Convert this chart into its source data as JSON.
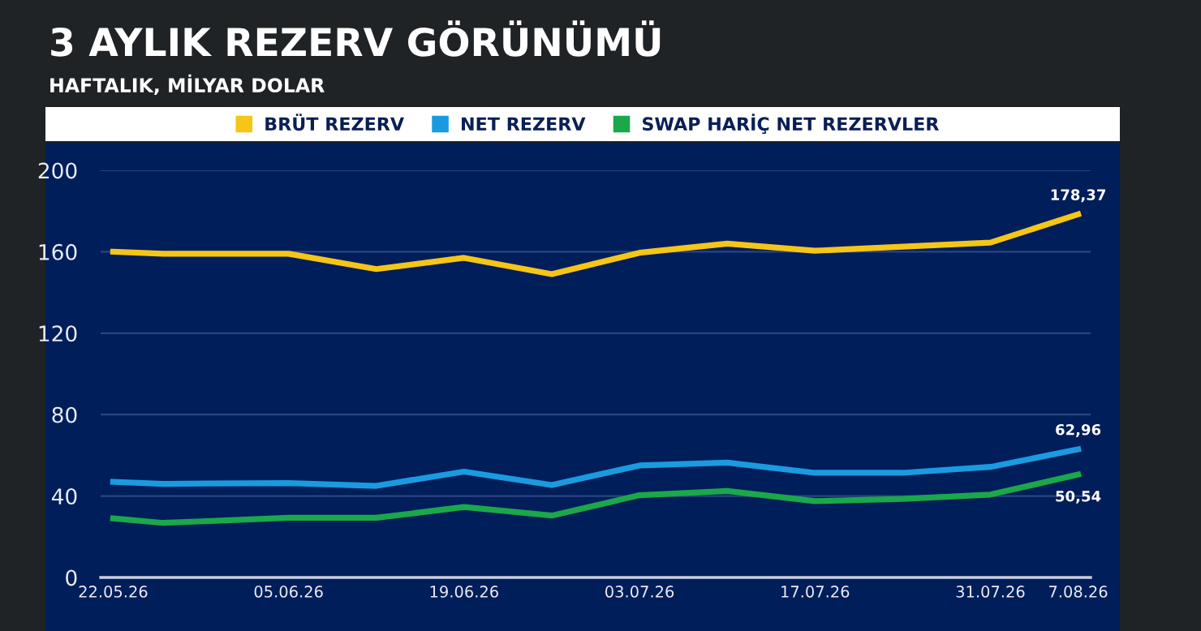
{
  "chart_data": {
    "type": "line",
    "title": "3 AYLIK REZERV GÖRÜNÜMÜ",
    "subtitle": "HAFTALIK, MİLYAR DOLAR",
    "x": [
      "2026-05-22",
      "2026-05-26",
      "2026-06-05",
      "2026-06-12",
      "2026-06-19",
      "2026-06-26",
      "2026-07-03",
      "2026-07-10",
      "2026-07-17",
      "2026-07-24",
      "2026-07-31",
      "2026-08-07"
    ],
    "series": [
      {
        "name": "BRÜT REZERV",
        "color": "#f5c518",
        "values": [
          160,
          159,
          159,
          151.5,
          157,
          149,
          159.5,
          164,
          160.5,
          162.5,
          164.5,
          178.37
        ],
        "value_labels": [
          null,
          null,
          null,
          null,
          null,
          null,
          null,
          null,
          null,
          null,
          null,
          "178,37"
        ]
      },
      {
        "name": "NET REZERV",
        "color": "#1a9be0",
        "values": [
          47,
          46,
          46.4,
          45,
          52,
          45.4,
          55,
          56.4,
          51.4,
          51.4,
          54.3,
          62.96
        ],
        "value_labels": [
          null,
          null,
          null,
          null,
          null,
          null,
          null,
          null,
          null,
          null,
          null,
          "62,96"
        ]
      },
      {
        "name": "SWAP HARİÇ NET REZERVLER",
        "color": "#1aa84a",
        "values": [
          29,
          26.8,
          29.3,
          29.3,
          34.6,
          30.4,
          40.4,
          42.5,
          37.5,
          38.6,
          40.7,
          50.54
        ],
        "value_labels": [
          null,
          null,
          null,
          null,
          null,
          null,
          null,
          null,
          null,
          null,
          null,
          "50,54"
        ]
      }
    ],
    "xlim": [
      "2026-05-21",
      "2026-08-08"
    ],
    "xticks": [
      {
        "value": "2026-05-22",
        "label": "22.05.26"
      },
      {
        "value": "2026-06-05",
        "label": "05.06.26"
      },
      {
        "value": "2026-06-19",
        "label": "19.06.26"
      },
      {
        "value": "2026-07-03",
        "label": "03.07.26"
      },
      {
        "value": "2026-07-17",
        "label": "17.07.26"
      },
      {
        "value": "2026-07-31",
        "label": "31.07.26"
      },
      {
        "value": "2026-08-07",
        "label": "7.08.26"
      }
    ],
    "ylim": [
      0,
      200
    ],
    "yticks": [
      0,
      40,
      80,
      120,
      160,
      200
    ],
    "grid": "y",
    "legend": "top",
    "marker": "none",
    "line_style": "solid"
  }
}
